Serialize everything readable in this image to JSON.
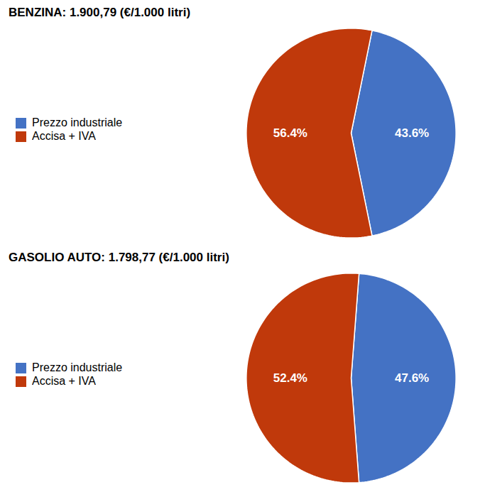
{
  "chart_data": [
    {
      "type": "pie",
      "title": "BENZINA: 1.900,79 (€/1.000 litri)",
      "categories": [
        "Prezzo industriale",
        "Accisa + IVA"
      ],
      "values": [
        43.6,
        56.4
      ],
      "value_labels": [
        "43.6%",
        "56.4%"
      ],
      "colors": [
        "#4472C4",
        "#C0390B"
      ],
      "data_labels": true,
      "legend": "left"
    },
    {
      "type": "pie",
      "title": "GASOLIO AUTO: 1.798,77 (€/1.000 litri)",
      "categories": [
        "Prezzo industriale",
        "Accisa + IVA"
      ],
      "values": [
        47.6,
        52.4
      ],
      "value_labels": [
        "47.6%",
        "52.4%"
      ],
      "colors": [
        "#4472C4",
        "#C0390B"
      ],
      "data_labels": true,
      "legend": "left"
    }
  ]
}
